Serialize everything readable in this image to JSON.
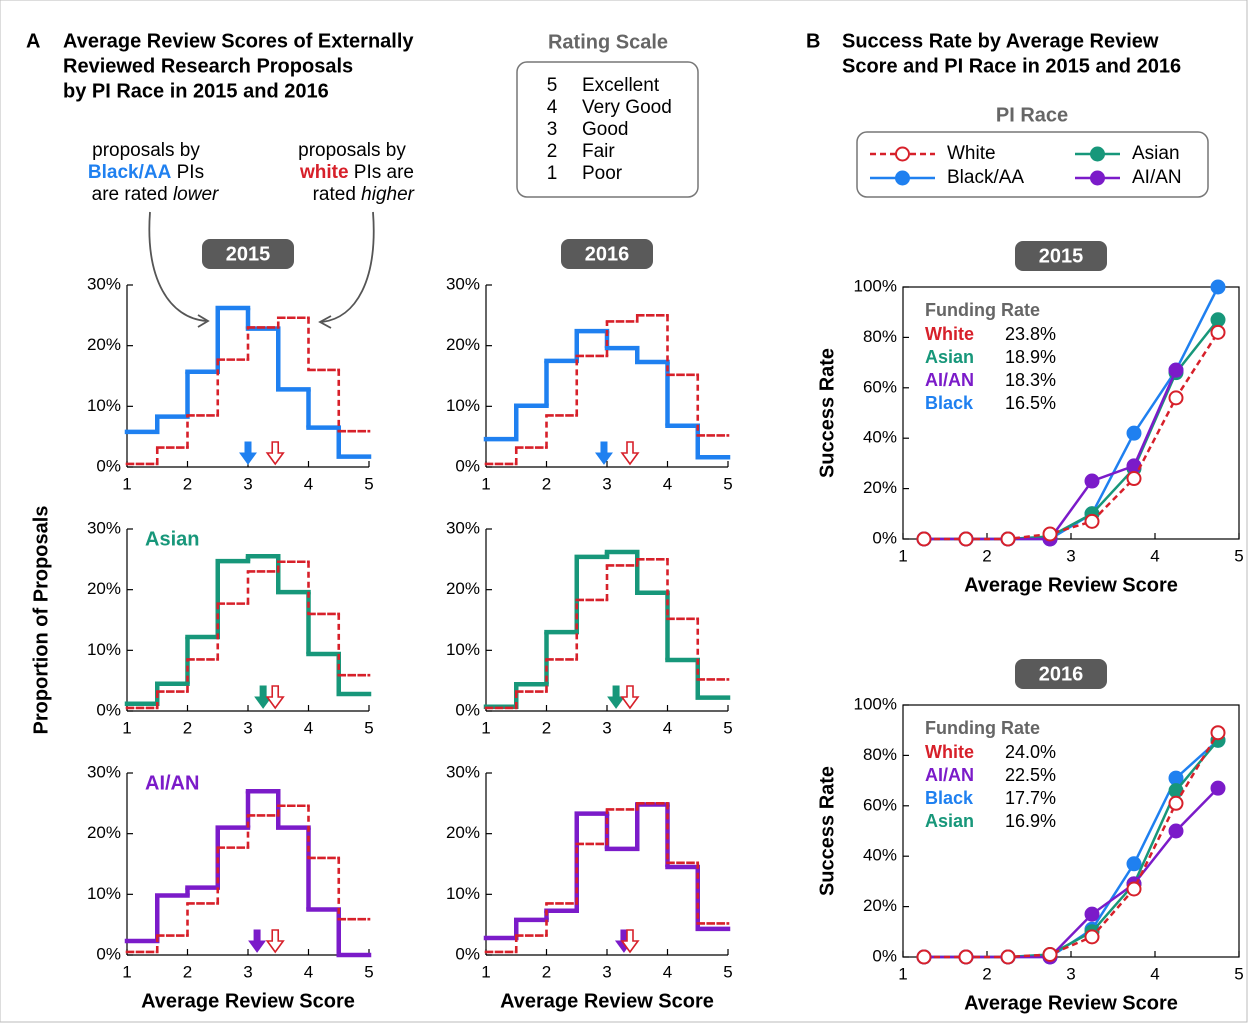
{
  "panel_a": {
    "letter": "A",
    "title_lines": [
      "Average Review Scores of Externally",
      "Reviewed Research Proposals",
      "by PI Race in 2015 and 2016"
    ],
    "ylabel": "Proportion of Proposals",
    "note_left": {
      "line1": "proposals by",
      "group": "Black/AA",
      "line2_rest": " PIs",
      "line3": "are rated ",
      "emphasis": "lower"
    },
    "note_right": {
      "line1": "proposals by",
      "group": "white",
      "line2_rest": " PIs are",
      "line3": "rated ",
      "emphasis": "higher"
    }
  },
  "rating_scale": {
    "title": "Rating Scale",
    "items": [
      {
        "score": 5,
        "label": "Excellent"
      },
      {
        "score": 4,
        "label": "Very Good"
      },
      {
        "score": 3,
        "label": "Good"
      },
      {
        "score": 2,
        "label": "Fair"
      },
      {
        "score": 1,
        "label": "Poor"
      }
    ]
  },
  "panel_b": {
    "letter": "B",
    "title_lines": [
      "Success Rate by Average Review",
      "Score and PI Race in 2015 and 2016"
    ],
    "legend_title": "PI Race"
  },
  "chart_data": [
    {
      "type": "histogram",
      "badge": "2015",
      "bins": [
        1,
        1.5,
        2,
        2.5,
        3,
        3.5,
        4,
        4.5,
        5
      ],
      "xlim": [
        1,
        5
      ],
      "ylim": [
        0,
        30
      ],
      "xticks": [
        1,
        2,
        3,
        4,
        5
      ],
      "yticks": [
        {
          "value": 0,
          "label": "0%"
        },
        {
          "value": 10,
          "label": "10%"
        },
        {
          "value": 20,
          "label": "20%"
        },
        {
          "value": 30,
          "label": "30%"
        }
      ],
      "series": [
        {
          "color": "#1f80f0",
          "values": [
            5.8,
            8.3,
            15.7,
            26.2,
            22.8,
            12.8,
            6.5,
            1.7
          ],
          "mean": 3.0
        },
        {
          "color": "#d7202a",
          "style": "dashed",
          "values": [
            0.5,
            3.2,
            8.5,
            17.7,
            23.0,
            24.6,
            16.0,
            5.9
          ],
          "mean": 3.45
        }
      ]
    },
    {
      "type": "histogram",
      "badge": "2016",
      "bins": [
        1,
        1.5,
        2,
        2.5,
        3,
        3.5,
        4,
        4.5,
        5
      ],
      "xlim": [
        1,
        5
      ],
      "ylim": [
        0,
        30
      ],
      "xticks": [
        1,
        2,
        3,
        4,
        5
      ],
      "yticks": [
        {
          "value": 0,
          "label": "0%"
        },
        {
          "value": 10,
          "label": "10%"
        },
        {
          "value": 20,
          "label": "20%"
        },
        {
          "value": 30,
          "label": "30%"
        }
      ],
      "series": [
        {
          "color": "#1f80f0",
          "values": [
            4.6,
            10.1,
            17.5,
            22.4,
            19.6,
            17.3,
            6.8,
            1.6
          ],
          "mean": 2.95
        },
        {
          "color": "#d7202a",
          "style": "dashed",
          "values": [
            0.5,
            3.2,
            8.5,
            18.3,
            24.0,
            25.0,
            15.2,
            5.2
          ],
          "mean": 3.38
        }
      ]
    },
    {
      "type": "histogram",
      "label": "Asian",
      "bins": [
        1,
        1.5,
        2,
        2.5,
        3,
        3.5,
        4,
        4.5,
        5
      ],
      "xlim": [
        1,
        5
      ],
      "ylim": [
        0,
        30
      ],
      "xticks": [
        1,
        2,
        3,
        4,
        5
      ],
      "yticks": [
        {
          "value": 0,
          "label": "0%"
        },
        {
          "value": 10,
          "label": "10%"
        },
        {
          "value": 20,
          "label": "20%"
        },
        {
          "value": 30,
          "label": "30%"
        }
      ],
      "series": [
        {
          "color": "#17977a",
          "values": [
            1.2,
            4.5,
            12.2,
            24.7,
            25.5,
            19.6,
            9.4,
            2.8
          ],
          "mean": 3.25
        },
        {
          "color": "#d7202a",
          "style": "dashed",
          "values": [
            0.5,
            3.2,
            8.5,
            17.7,
            23.0,
            24.6,
            16.0,
            5.9
          ],
          "mean": 3.45
        }
      ]
    },
    {
      "type": "histogram",
      "bins": [
        1,
        1.5,
        2,
        2.5,
        3,
        3.5,
        4,
        4.5,
        5
      ],
      "xlim": [
        1,
        5
      ],
      "ylim": [
        0,
        30
      ],
      "xticks": [
        1,
        2,
        3,
        4,
        5
      ],
      "yticks": [
        {
          "value": 0,
          "label": "0%"
        },
        {
          "value": 10,
          "label": "10%"
        },
        {
          "value": 20,
          "label": "20%"
        },
        {
          "value": 30,
          "label": "30%"
        }
      ],
      "series": [
        {
          "color": "#17977a",
          "values": [
            0.7,
            4.4,
            13.0,
            25.4,
            26.2,
            19.5,
            8.4,
            2.2
          ],
          "mean": 3.15
        },
        {
          "color": "#d7202a",
          "style": "dashed",
          "values": [
            0.5,
            3.2,
            8.5,
            18.3,
            24.0,
            25.0,
            15.2,
            5.2
          ],
          "mean": 3.38
        }
      ]
    },
    {
      "type": "histogram",
      "label": "AI/AN",
      "xlabel": "Average Review Score",
      "bins": [
        1,
        1.5,
        2,
        2.5,
        3,
        3.5,
        4,
        4.5,
        5
      ],
      "xlim": [
        1,
        5
      ],
      "ylim": [
        0,
        30
      ],
      "xticks": [
        1,
        2,
        3,
        4,
        5
      ],
      "yticks": [
        {
          "value": 0,
          "label": "0%"
        },
        {
          "value": 10,
          "label": "10%"
        },
        {
          "value": 20,
          "label": "20%"
        },
        {
          "value": 30,
          "label": "30%"
        }
      ],
      "series": [
        {
          "color": "#7b1bc9",
          "values": [
            2.3,
            9.8,
            11.1,
            21.0,
            27.0,
            21.0,
            7.5,
            0
          ],
          "mean": 3.15
        },
        {
          "color": "#d7202a",
          "style": "dashed",
          "values": [
            0.5,
            3.2,
            8.5,
            17.7,
            23.0,
            24.6,
            16.0,
            5.9
          ],
          "mean": 3.45
        }
      ]
    },
    {
      "type": "histogram",
      "xlabel": "Average Review Score",
      "bins": [
        1,
        1.5,
        2,
        2.5,
        3,
        3.5,
        4,
        4.5,
        5
      ],
      "xlim": [
        1,
        5
      ],
      "ylim": [
        0,
        30
      ],
      "xticks": [
        1,
        2,
        3,
        4,
        5
      ],
      "yticks": [
        {
          "value": 0,
          "label": "0%"
        },
        {
          "value": 10,
          "label": "10%"
        },
        {
          "value": 20,
          "label": "20%"
        },
        {
          "value": 30,
          "label": "30%"
        }
      ],
      "series": [
        {
          "color": "#7b1bc9",
          "values": [
            2.8,
            5.8,
            7.3,
            23.3,
            17.5,
            24.8,
            14.5,
            4.3
          ],
          "mean": 3.28
        },
        {
          "color": "#d7202a",
          "style": "dashed",
          "values": [
            0.5,
            3.2,
            8.5,
            18.3,
            24.0,
            25.0,
            15.2,
            5.2
          ],
          "mean": 3.38
        }
      ]
    },
    {
      "type": "line",
      "badge": "2015",
      "xlabel": "Average Review Score",
      "ylabel": "Success Rate",
      "frame": true,
      "x": [
        1.25,
        1.75,
        2.25,
        2.75,
        3.25,
        3.75,
        4.25,
        4.75
      ],
      "xlim": [
        1,
        5
      ],
      "ylim": [
        0,
        100
      ],
      "xticks": [
        1,
        2,
        3,
        4,
        5
      ],
      "yticks": [
        {
          "value": 0,
          "label": "0%"
        },
        {
          "value": 20,
          "label": "20%"
        },
        {
          "value": 40,
          "label": "40%"
        },
        {
          "value": 60,
          "label": "60%"
        },
        {
          "value": 80,
          "label": "80%"
        },
        {
          "value": 100,
          "label": "100%"
        }
      ],
      "series": [
        {
          "name": "White",
          "color": "#d7202a",
          "style": "dashed",
          "values": [
            0,
            0,
            0,
            2,
            7,
            24,
            56,
            82
          ]
        },
        {
          "name": "Black/AA",
          "color": "#1f80f0",
          "values": [
            0,
            0,
            0,
            0,
            10,
            42,
            67,
            100
          ]
        },
        {
          "name": "Asian",
          "color": "#17977a",
          "values": [
            0,
            0,
            0,
            1,
            10,
            28,
            66,
            87
          ]
        },
        {
          "name": "AI/AN",
          "color": "#7b1bc9",
          "values": [
            0,
            0,
            0,
            0,
            23,
            29,
            67,
            null
          ]
        }
      ],
      "funding_rate": {
        "title": "Funding Rate",
        "rows": [
          {
            "label": "White",
            "value": "23.8%",
            "color": "#d7202a"
          },
          {
            "label": "Asian",
            "value": "18.9%",
            "color": "#17977a"
          },
          {
            "label": "AI/AN",
            "value": "18.3%",
            "color": "#7b1bc9"
          },
          {
            "label": "Black",
            "value": "16.5%",
            "color": "#1f80f0"
          }
        ]
      }
    },
    {
      "type": "line",
      "badge": "2016",
      "xlabel": "Average Review Score",
      "ylabel": "Success Rate",
      "frame": true,
      "x": [
        1.25,
        1.75,
        2.25,
        2.75,
        3.25,
        3.75,
        4.25,
        4.75
      ],
      "xlim": [
        1,
        5
      ],
      "ylim": [
        0,
        100
      ],
      "xticks": [
        1,
        2,
        3,
        4,
        5
      ],
      "yticks": [
        {
          "value": 0,
          "label": "0%"
        },
        {
          "value": 20,
          "label": "20%"
        },
        {
          "value": 40,
          "label": "40%"
        },
        {
          "value": 60,
          "label": "60%"
        },
        {
          "value": 80,
          "label": "80%"
        },
        {
          "value": 100,
          "label": "100%"
        }
      ],
      "series": [
        {
          "name": "White",
          "color": "#d7202a",
          "style": "dashed",
          "values": [
            0,
            0,
            0,
            1,
            8,
            27,
            61,
            89
          ]
        },
        {
          "name": "Black/AA",
          "color": "#1f80f0",
          "values": [
            0,
            0,
            0,
            0,
            11,
            37,
            71,
            86
          ]
        },
        {
          "name": "Asian",
          "color": "#17977a",
          "values": [
            0,
            0,
            0,
            1,
            10,
            29,
            66,
            86
          ]
        },
        {
          "name": "AI/AN",
          "color": "#7b1bc9",
          "values": [
            0,
            0,
            0,
            0,
            17,
            29,
            50,
            67
          ]
        }
      ],
      "funding_rate": {
        "title": "Funding Rate",
        "rows": [
          {
            "label": "White",
            "value": "24.0%",
            "color": "#d7202a"
          },
          {
            "label": "AI/AN",
            "value": "22.5%",
            "color": "#7b1bc9"
          },
          {
            "label": "Black",
            "value": "17.7%",
            "color": "#1f80f0"
          },
          {
            "label": "Asian",
            "value": "16.9%",
            "color": "#17977a"
          }
        ]
      }
    }
  ]
}
